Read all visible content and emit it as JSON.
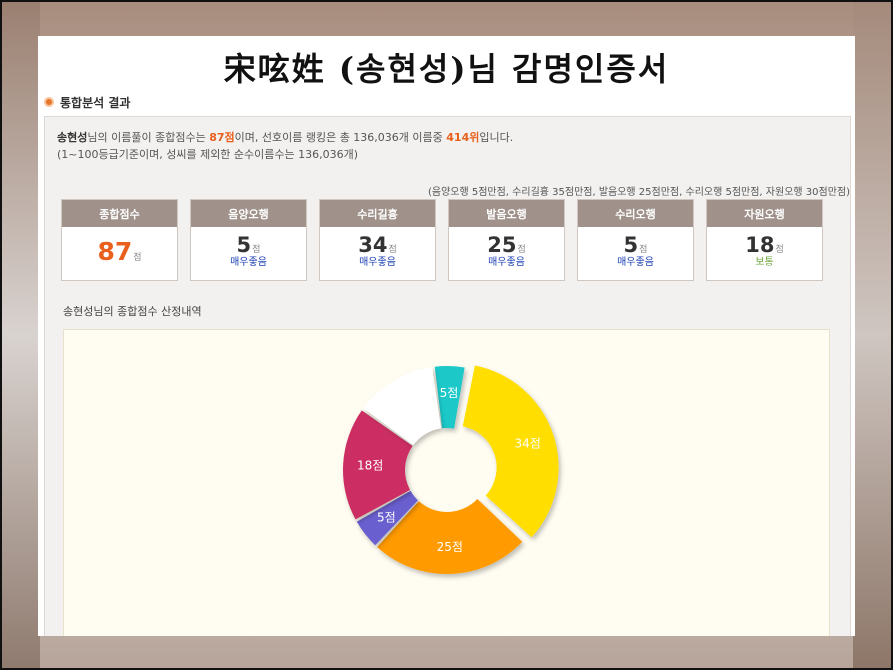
{
  "certificate": {
    "title": "宋呟姓 (송현성)님 감명인증서"
  },
  "section": {
    "title": "통합분석 결과"
  },
  "summary": {
    "name": "송현성",
    "text1": "님의 이름풀이 종합점수는 ",
    "total_score": "87점",
    "text2": "이며, 선호이름 랭킹은 총 136,036개 이름중 ",
    "rank": "414위",
    "text3": "입니다.",
    "line2": "(1~100등급기준이며, 성씨를 제외한 순수이름수는 136,036개)"
  },
  "criteria_note": "(음양오행 5점만점, 수리길흉 35점만점, 발음오행 25점만점, 수리오행 5점만점, 자원오행 30점만점)",
  "score_boxes": [
    {
      "label": "종합점수",
      "score": "87",
      "unit": "점",
      "grade": ""
    },
    {
      "label": "음양오행",
      "score": "5",
      "unit": "점",
      "grade": "매우좋음"
    },
    {
      "label": "수리길흉",
      "score": "34",
      "unit": "점",
      "grade": "매우좋음"
    },
    {
      "label": "발음오행",
      "score": "25",
      "unit": "점",
      "grade": "매우좋음"
    },
    {
      "label": "수리오행",
      "score": "5",
      "unit": "점",
      "grade": "매우좋음"
    },
    {
      "label": "자원오행",
      "score": "18",
      "unit": "점",
      "grade": "보통"
    }
  ],
  "breakdown": {
    "name": "송현성",
    "label": "님의 종합점수 산정내역"
  },
  "chart_data": {
    "type": "pie",
    "donut": true,
    "slices": [
      {
        "label": "5점",
        "value": 5,
        "color": "#1ec8c8"
      },
      {
        "label": "34점",
        "value": 34,
        "color": "#ffde00"
      },
      {
        "label": "25점",
        "value": 25,
        "color": "#ff9a00"
      },
      {
        "label": "5점",
        "value": 5,
        "color": "#6a5fcf"
      },
      {
        "label": "18점",
        "value": 18,
        "color": "#cc2f63"
      },
      {
        "label": "",
        "value": 13,
        "color": "#ffffff"
      }
    ]
  }
}
